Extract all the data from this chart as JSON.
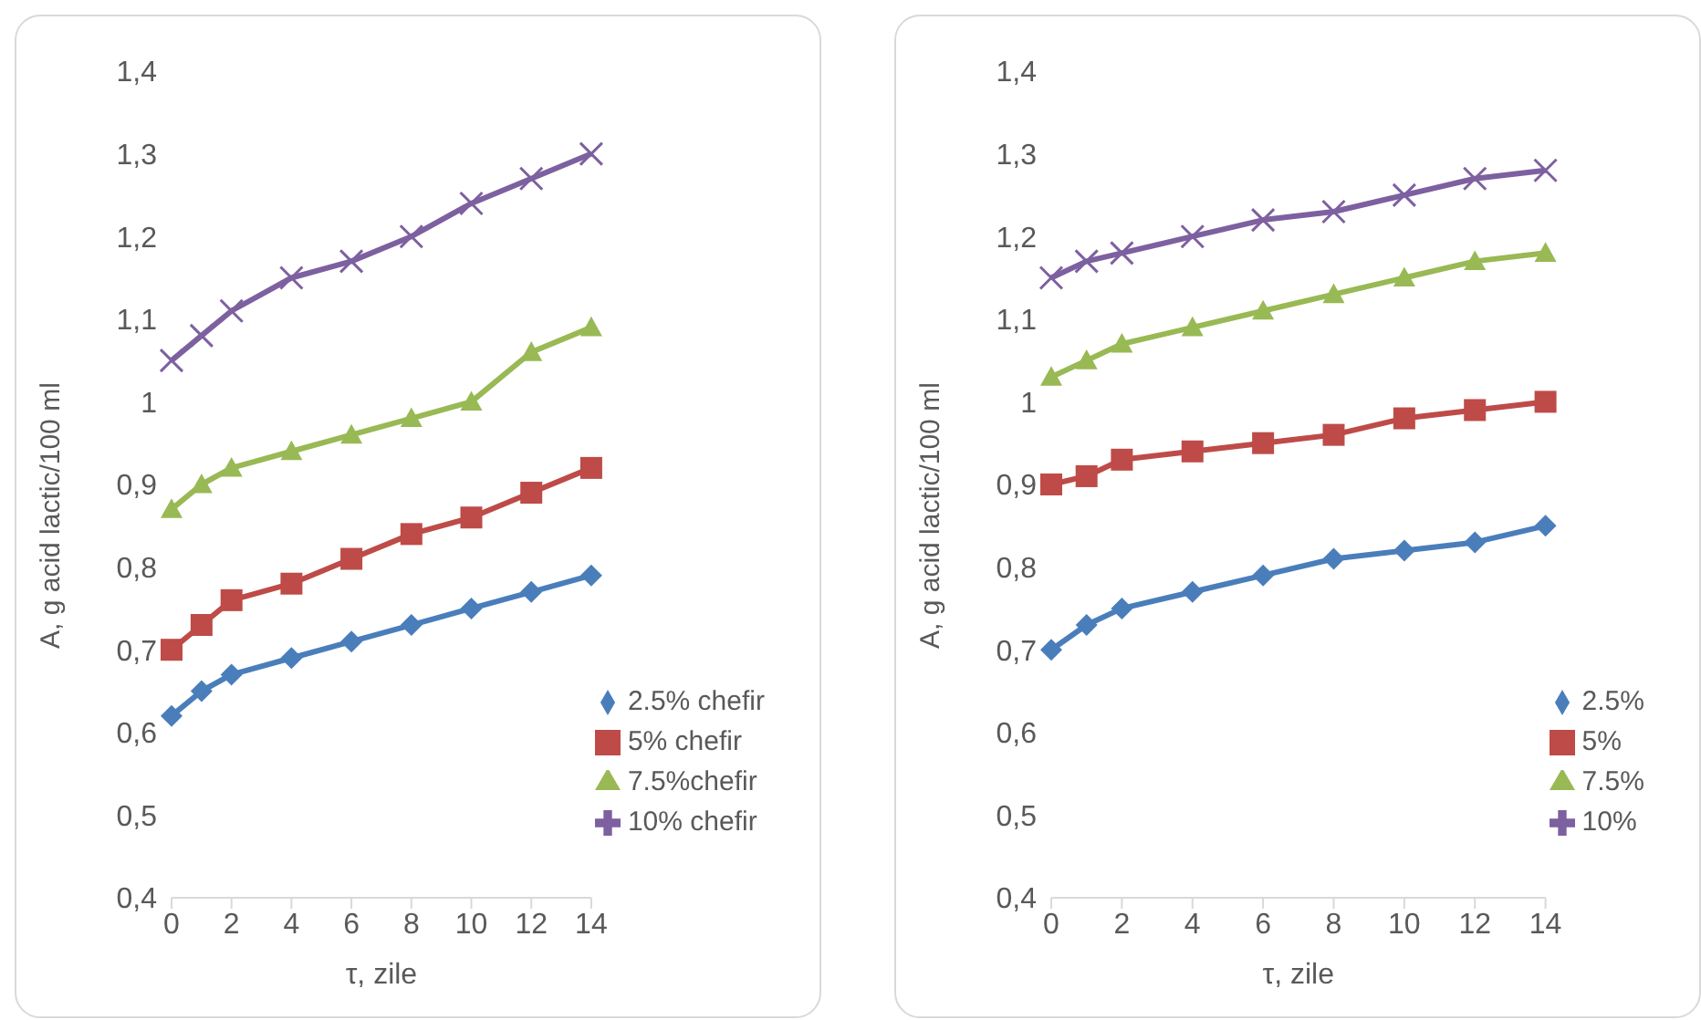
{
  "chart_data": [
    {
      "type": "line",
      "xlabel": "τ, zile",
      "ylabel": "A, g acid lactic/100 ml",
      "x": [
        0,
        1,
        2,
        4,
        6,
        8,
        10,
        12,
        14
      ],
      "xlim": [
        0,
        14
      ],
      "xticks": [
        0,
        2,
        4,
        6,
        8,
        10,
        12,
        14
      ],
      "ylim": [
        0.4,
        1.4
      ],
      "yticks": [
        {
          "value": 0.4,
          "label": "0,4"
        },
        {
          "value": 0.5,
          "label": "0,5"
        },
        {
          "value": 0.6,
          "label": "0,6"
        },
        {
          "value": 0.7,
          "label": "0,7"
        },
        {
          "value": 0.8,
          "label": "0,8"
        },
        {
          "value": 0.9,
          "label": "0,9"
        },
        1,
        {
          "value": 1.1,
          "label": "1,1"
        },
        {
          "value": 1.2,
          "label": "1,2"
        },
        {
          "value": 1.3,
          "label": "1,3"
        },
        {
          "value": 1.4,
          "label": "1,4"
        }
      ],
      "grid": false,
      "legend": "bottom right",
      "line_style": "solid",
      "series": [
        {
          "name": "2.5% chefir",
          "color": "#4a7ebb",
          "marker": "diamond",
          "values": [
            0.62,
            0.65,
            0.67,
            0.69,
            0.71,
            0.73,
            0.75,
            0.77,
            0.79
          ]
        },
        {
          "name": "5% chefir",
          "color": "#be4b48",
          "marker": "square",
          "values": [
            0.7,
            0.73,
            0.76,
            0.78,
            0.81,
            0.84,
            0.86,
            0.89,
            0.92
          ]
        },
        {
          "name": "7.5%chefir",
          "color": "#98b954",
          "marker": "triangle",
          "values": [
            0.87,
            0.9,
            0.92,
            0.94,
            0.96,
            0.98,
            1.0,
            1.06,
            1.09
          ]
        },
        {
          "name": "10% chefir",
          "color": "#7d60a0",
          "marker": "cross",
          "values": [
            1.05,
            1.08,
            1.11,
            1.15,
            1.17,
            1.2,
            1.24,
            1.27,
            1.3
          ]
        }
      ]
    },
    {
      "type": "line",
      "xlabel": "τ, zile",
      "ylabel": "A, g acid lactic/100 ml",
      "x": [
        0,
        1,
        2,
        4,
        6,
        8,
        10,
        12,
        14
      ],
      "xlim": [
        0,
        14
      ],
      "xticks": [
        0,
        2,
        4,
        6,
        8,
        10,
        12,
        14
      ],
      "ylim": [
        0.4,
        1.4
      ],
      "yticks": [
        {
          "value": 0.4,
          "label": "0,4"
        },
        {
          "value": 0.5,
          "label": "0,5"
        },
        {
          "value": 0.6,
          "label": "0,6"
        },
        {
          "value": 0.7,
          "label": "0,7"
        },
        {
          "value": 0.8,
          "label": "0,8"
        },
        {
          "value": 0.9,
          "label": "0,9"
        },
        1,
        {
          "value": 1.1,
          "label": "1,1"
        },
        {
          "value": 1.2,
          "label": "1,2"
        },
        {
          "value": 1.3,
          "label": "1,3"
        },
        {
          "value": 1.4,
          "label": "1,4"
        }
      ],
      "grid": false,
      "legend": "bottom right",
      "line_style": "solid",
      "series": [
        {
          "name": "2.5%",
          "color": "#4a7ebb",
          "marker": "diamond",
          "values": [
            0.7,
            0.73,
            0.75,
            0.77,
            0.79,
            0.81,
            0.82,
            0.83,
            0.85
          ]
        },
        {
          "name": "5%",
          "color": "#be4b48",
          "marker": "square",
          "values": [
            0.9,
            0.91,
            0.93,
            0.94,
            0.95,
            0.96,
            0.98,
            0.99,
            1.0
          ]
        },
        {
          "name": "7.5%",
          "color": "#98b954",
          "marker": "triangle",
          "values": [
            1.03,
            1.05,
            1.07,
            1.09,
            1.11,
            1.13,
            1.15,
            1.17,
            1.18
          ]
        },
        {
          "name": "10%",
          "color": "#7d60a0",
          "marker": "cross",
          "values": [
            1.15,
            1.17,
            1.18,
            1.2,
            1.22,
            1.23,
            1.25,
            1.27,
            1.28
          ]
        }
      ]
    }
  ]
}
